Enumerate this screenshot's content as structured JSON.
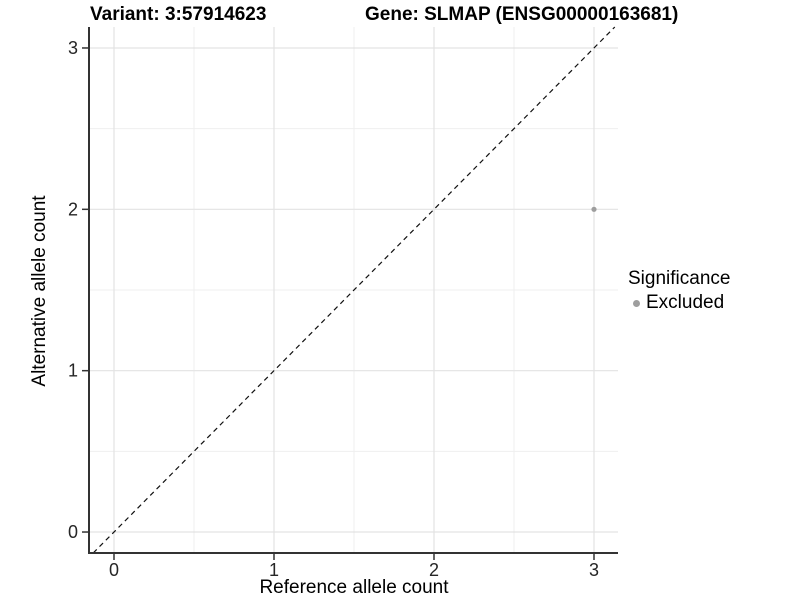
{
  "figure": {
    "title_left": "Variant: 3:57914623",
    "title_right": "Gene: SLMAP (ENSG00000163681)"
  },
  "chart_data": {
    "type": "scatter",
    "titles": [
      "Variant: 3:57914623",
      "Gene: SLMAP (ENSG00000163681)"
    ],
    "xlabel": "Reference allele count",
    "ylabel": "Alternative allele count",
    "xlim": [
      -0.15,
      3.15
    ],
    "ylim": [
      -0.13,
      3.13
    ],
    "xticks": [
      0,
      1,
      2,
      3
    ],
    "yticks": [
      0,
      1,
      2,
      3
    ],
    "minor_xticks": [
      0.5,
      1.5,
      2.5
    ],
    "minor_yticks": [
      0.5,
      1.5,
      2.5
    ],
    "grid": true,
    "reference_line": {
      "type": "identity",
      "slope": 1,
      "intercept": 0,
      "style": "dashed",
      "color": "#111111"
    },
    "series": [
      {
        "name": "Excluded",
        "color": "#9e9e9e",
        "points": [
          {
            "x": 3,
            "y": 2
          }
        ]
      }
    ],
    "legend": {
      "title": "Significance",
      "position": "right",
      "items": [
        {
          "label": "Excluded",
          "color": "#9e9e9e"
        }
      ]
    },
    "colors": {
      "background": "#ffffff",
      "major_grid": "#e3e3e3",
      "minor_grid": "#efefef",
      "axis_line": "#333333",
      "tick_label": "#262626",
      "point": "#9e9e9e"
    }
  }
}
